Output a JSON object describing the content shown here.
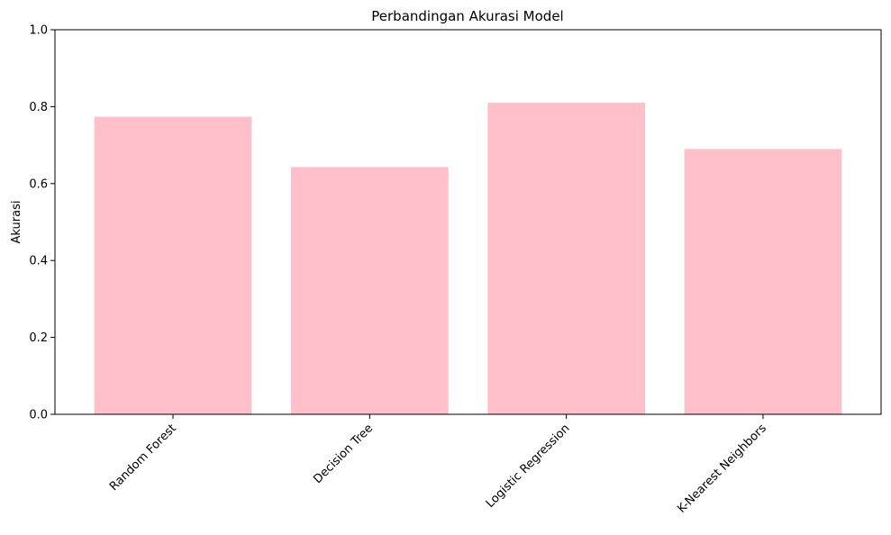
{
  "chart_data": {
    "type": "bar",
    "title": "Perbandingan Akurasi Model",
    "xlabel": "",
    "ylabel": "Akurasi",
    "categories": [
      "Random Forest",
      "Decision Tree",
      "Logistic Regression",
      "K-Nearest Neighbors"
    ],
    "values": [
      0.774,
      0.643,
      0.81,
      0.69
    ],
    "ylim": [
      0,
      1.0
    ],
    "yticks": [
      "0.0",
      "0.2",
      "0.4",
      "0.6",
      "0.8",
      "1.0"
    ],
    "bar_color": "#ffc0cb",
    "grid": false,
    "legend": "none"
  }
}
